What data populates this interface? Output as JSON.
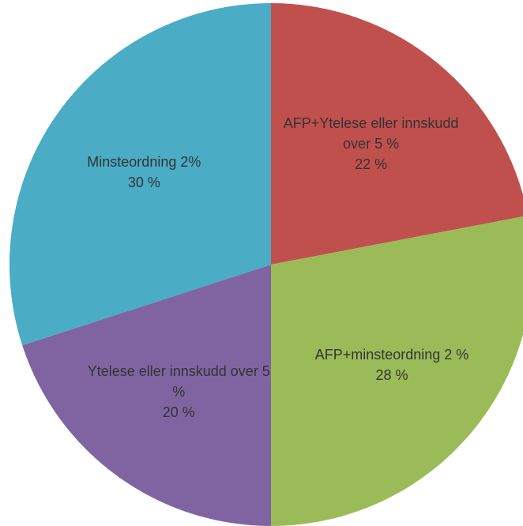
{
  "chart_data": {
    "type": "pie",
    "categories": [
      "AFP+Ytelese eller innskudd over 5 %",
      "AFP+minsteordning 2 %",
      "Ytelese eller innskudd over 5 %",
      "Minsteordning 2%"
    ],
    "values": [
      22,
      28,
      20,
      30
    ],
    "value_labels": [
      "22 %",
      "28 %",
      "20 %",
      "30 %"
    ],
    "colors": [
      "#c0504d",
      "#9bbb59",
      "#8064a2",
      "#4bacc6"
    ]
  }
}
